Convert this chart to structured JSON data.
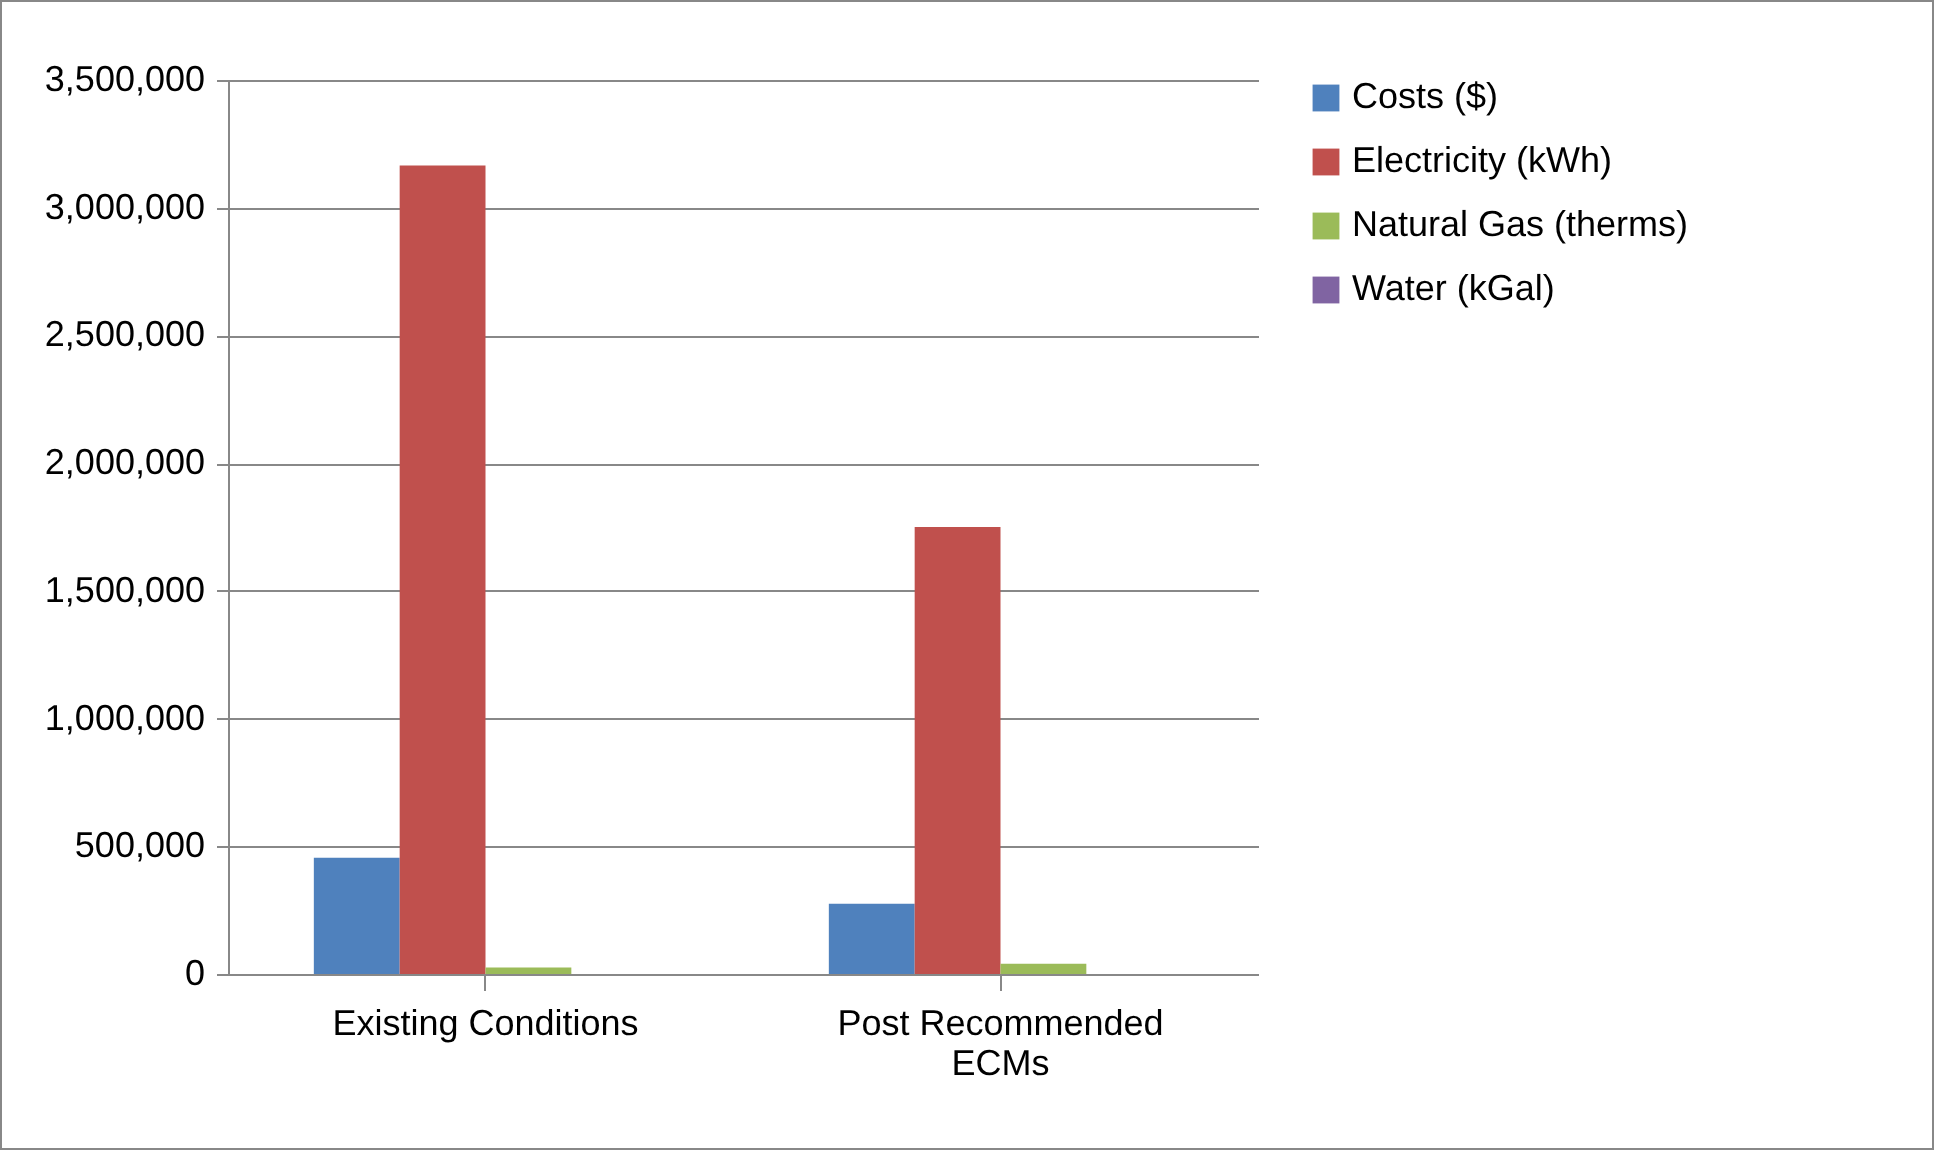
{
  "chart_data": {
    "type": "bar",
    "categories": [
      "Existing Conditions",
      "Post Recommended ECMs"
    ],
    "series": [
      {
        "name": "Costs ($)",
        "color": "#4f81bd",
        "values": [
          455000,
          275000
        ]
      },
      {
        "name": "Electricity (kWh)",
        "color": "#c0504d",
        "values": [
          3165000,
          1750000
        ]
      },
      {
        "name": "Natural Gas (therms)",
        "color": "#9bbb59",
        "values": [
          25000,
          40000
        ]
      },
      {
        "name": "Water (kGal)",
        "color": "#8064a2",
        "values": [
          0,
          0
        ]
      }
    ],
    "ylim": [
      0,
      3500000
    ],
    "yticks": [
      0,
      {
        "value": 500000,
        "label": "500,000"
      },
      {
        "value": 1000000,
        "label": "1,000,000"
      },
      {
        "value": 1500000,
        "label": "1,500,000"
      },
      {
        "value": 2000000,
        "label": "2,000,000"
      },
      {
        "value": 2500000,
        "label": "2,500,000"
      },
      {
        "value": 3000000,
        "label": "3,000,000"
      },
      {
        "value": 3500000,
        "label": "3,500,000"
      }
    ],
    "grid": "y",
    "legend": "right"
  }
}
